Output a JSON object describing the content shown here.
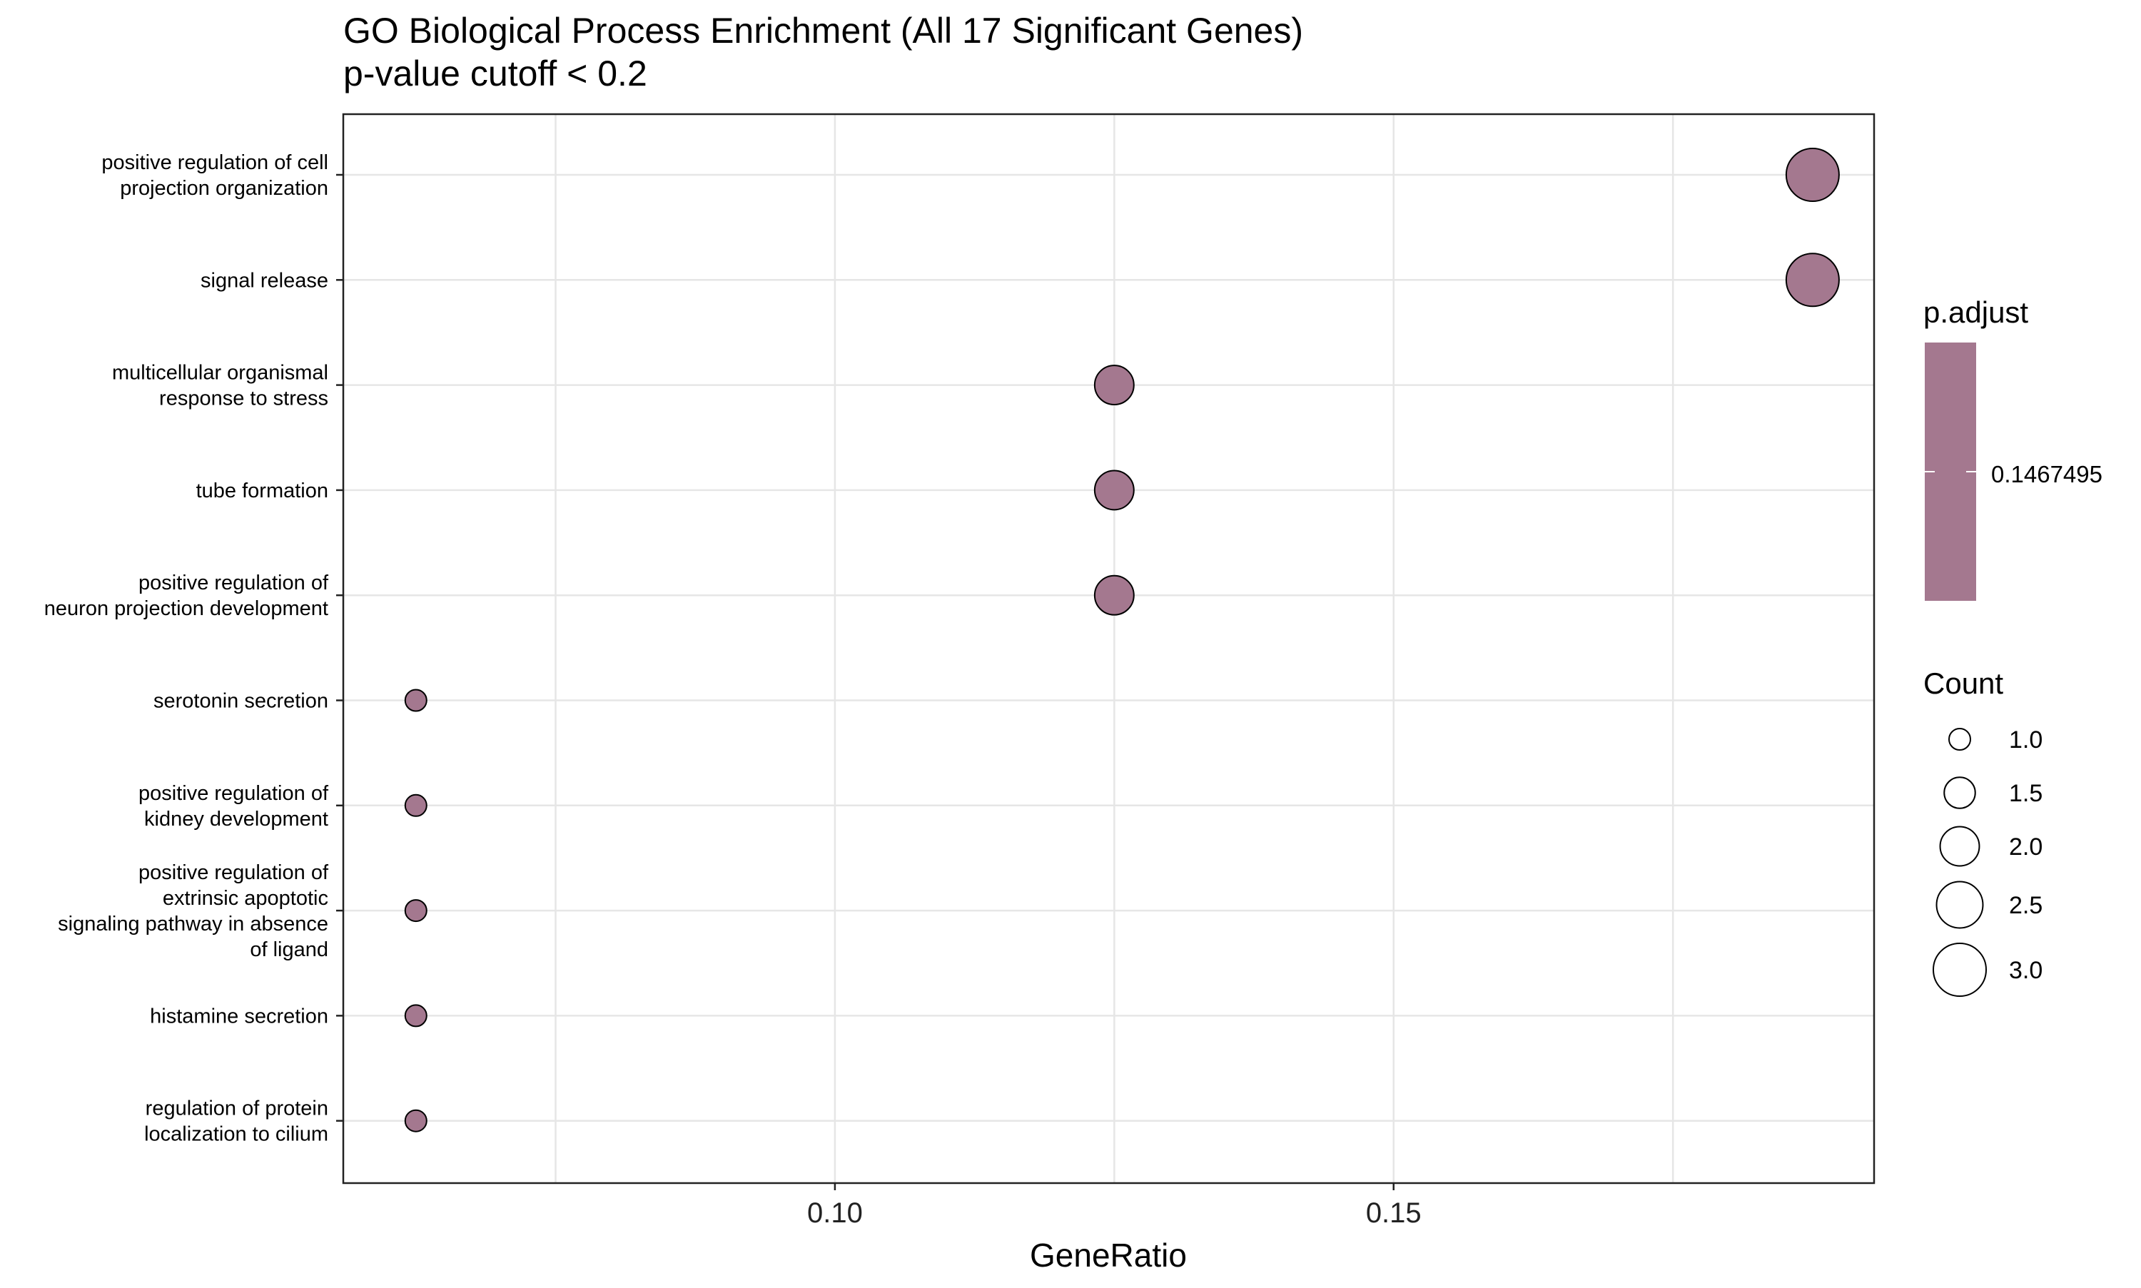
{
  "chart_data": {
    "type": "scatter",
    "title": "GO Biological Process Enrichment (All 17 Significant Genes)",
    "subtitle": "p-value cutoff < 0.2",
    "xlabel": "GeneRatio",
    "ylabel": "",
    "xlim": [
      0.056,
      0.193
    ],
    "xticks": [
      {
        "value": 0.1,
        "label": "0.10"
      },
      {
        "value": 0.15,
        "label": "0.15"
      }
    ],
    "x_minor_gridlines": [
      0.075,
      0.125,
      0.175
    ],
    "grid": true,
    "categories": [
      "positive regulation of cell projection organization",
      "signal release",
      "multicellular organismal response to stress",
      "tube formation",
      "positive regulation of neuron projection development",
      "serotonin secretion",
      "positive regulation of kidney development",
      "positive regulation of extrinsic apoptotic signaling pathway in absence of ligand",
      "histamine secretion",
      "regulation of protein localization to cilium"
    ],
    "category_label_lines": [
      [
        "positive regulation of cell",
        "projection organization"
      ],
      [
        "signal release"
      ],
      [
        "multicellular organismal",
        "response to stress"
      ],
      [
        "tube formation"
      ],
      [
        "positive regulation of",
        "neuron projection development"
      ],
      [
        "serotonin secretion"
      ],
      [
        "positive regulation of",
        "kidney development"
      ],
      [
        "positive regulation of",
        "extrinsic apoptotic",
        "signaling pathway in absence",
        "of ligand"
      ],
      [
        "histamine secretion"
      ],
      [
        "regulation of protein",
        "localization to cilium"
      ]
    ],
    "points": [
      {
        "term": "positive regulation of cell projection organization",
        "gene_ratio": 0.1875,
        "count": 3
      },
      {
        "term": "signal release",
        "gene_ratio": 0.1875,
        "count": 3
      },
      {
        "term": "multicellular organismal response to stress",
        "gene_ratio": 0.125,
        "count": 2
      },
      {
        "term": "tube formation",
        "gene_ratio": 0.125,
        "count": 2
      },
      {
        "term": "positive regulation of neuron projection development",
        "gene_ratio": 0.125,
        "count": 2
      },
      {
        "term": "serotonin secretion",
        "gene_ratio": 0.0625,
        "count": 1
      },
      {
        "term": "positive regulation of kidney development",
        "gene_ratio": 0.0625,
        "count": 1
      },
      {
        "term": "positive regulation of extrinsic apoptotic signaling pathway in absence of ligand",
        "gene_ratio": 0.0625,
        "count": 1
      },
      {
        "term": "histamine secretion",
        "gene_ratio": 0.0625,
        "count": 1
      },
      {
        "term": "regulation of protein localization to cilium",
        "gene_ratio": 0.0625,
        "count": 1
      }
    ],
    "color_legend": {
      "title": "p.adjust",
      "label": "0.1467495",
      "value": 0.1467495
    },
    "size_legend": {
      "title": "Count",
      "values": [
        1.0,
        1.5,
        2.0,
        2.5,
        3.0
      ],
      "labels": [
        "1.0",
        "1.5",
        "2.0",
        "2.5",
        "3.0"
      ]
    },
    "legend_placement": "right",
    "colors": {
      "point_fill": "#a4788f",
      "point_stroke": "#000000",
      "panel_border": "#222222",
      "grid": "#e6e6e6",
      "text": "#000000",
      "axis_text": "#222222"
    }
  }
}
